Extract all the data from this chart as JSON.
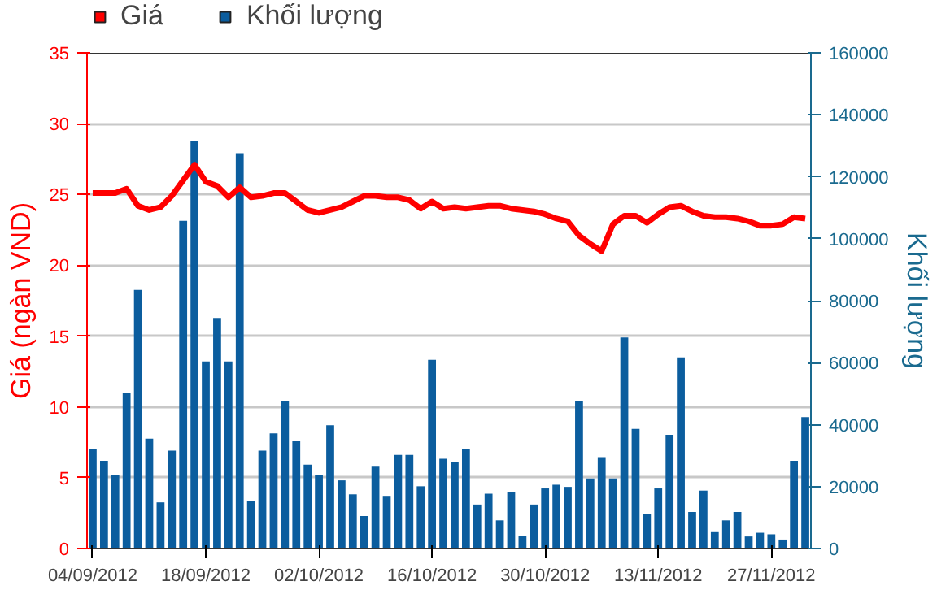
{
  "chart_data": {
    "type": "line",
    "ylabel": "Giá (ngàn VND)",
    "y2label": "Khối lượng",
    "categories": [
      "04/09/2012",
      null,
      null,
      null,
      null,
      null,
      null,
      null,
      null,
      null,
      "18/09/2012",
      null,
      null,
      null,
      null,
      null,
      null,
      null,
      null,
      null,
      "02/10/2012",
      null,
      null,
      null,
      null,
      null,
      null,
      null,
      null,
      null,
      "16/10/2012",
      null,
      null,
      null,
      null,
      null,
      null,
      null,
      null,
      null,
      "30/10/2012",
      null,
      null,
      null,
      null,
      null,
      null,
      null,
      null,
      null,
      "13/11/2012",
      null,
      null,
      null,
      null,
      null,
      null,
      null,
      null,
      null,
      "27/11/2012",
      null,
      null,
      null
    ],
    "series": [
      {
        "name": "Giá",
        "color": "#ff0000",
        "values": [
          25.1,
          25.1,
          25.1,
          25.4,
          24.2,
          23.9,
          24.1,
          24.9,
          26.0,
          27.1,
          25.9,
          25.6,
          24.8,
          25.5,
          24.8,
          24.9,
          25.1,
          25.1,
          24.5,
          23.9,
          23.7,
          23.9,
          24.1,
          24.5,
          24.9,
          24.9,
          24.8,
          24.8,
          24.6,
          24.0,
          24.5,
          24.0,
          24.1,
          24.0,
          24.1,
          24.2,
          24.2,
          24.0,
          23.9,
          23.8,
          23.6,
          23.3,
          23.1,
          22.1,
          21.5,
          21.0,
          22.9,
          23.5,
          23.5,
          23.0,
          23.6,
          24.1,
          24.2,
          23.8,
          23.5,
          23.4,
          23.4,
          23.3,
          23.1,
          22.8,
          22.8,
          22.9,
          23.4,
          23.3
        ]
      },
      {
        "name": "Khối lượng",
        "type": "bar",
        "axis": "y2",
        "color": "#0b5d9e",
        "values": [
          32000,
          28300,
          23800,
          50100,
          83500,
          35500,
          14900,
          31600,
          105800,
          131400,
          60400,
          74400,
          60400,
          127600,
          15400,
          31600,
          37200,
          47500,
          34600,
          27100,
          23800,
          39800,
          22000,
          17500,
          10500,
          26400,
          17000,
          30200,
          30200,
          20100,
          60900,
          29000,
          27800,
          32200,
          14200,
          17700,
          9100,
          18200,
          4100,
          14200,
          19400,
          20600,
          19900,
          47500,
          22600,
          29500,
          22600,
          68100,
          38600,
          11100,
          19400,
          36700,
          61700,
          11800,
          18700,
          5300,
          9100,
          11800,
          3900,
          5100,
          4600,
          2900,
          28300,
          42400
        ]
      }
    ],
    "ylim": [
      0,
      35
    ],
    "yticks": [
      0,
      5,
      10,
      15,
      20,
      25,
      30,
      35
    ],
    "y2lim": [
      0,
      160000
    ],
    "y2ticks": [
      0,
      20000,
      40000,
      60000,
      80000,
      100000,
      120000,
      140000,
      160000
    ],
    "grid": "y",
    "legend": "top left"
  }
}
